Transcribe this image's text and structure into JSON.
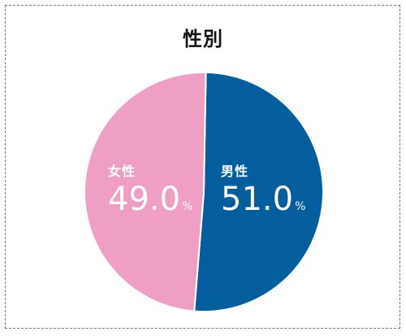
{
  "chart_data": {
    "type": "pie",
    "title": "性別",
    "unit": "%",
    "slices": [
      {
        "label": "男性",
        "value": 51.0,
        "display": "51.0",
        "color": "#045d9d"
      },
      {
        "label": "女性",
        "value": 49.0,
        "display": "49.0",
        "color": "#f09fc4"
      }
    ]
  },
  "colors": {
    "frame_border": "#5a7fa3",
    "separator": "#ffffff",
    "label_text": "#ffffff"
  }
}
